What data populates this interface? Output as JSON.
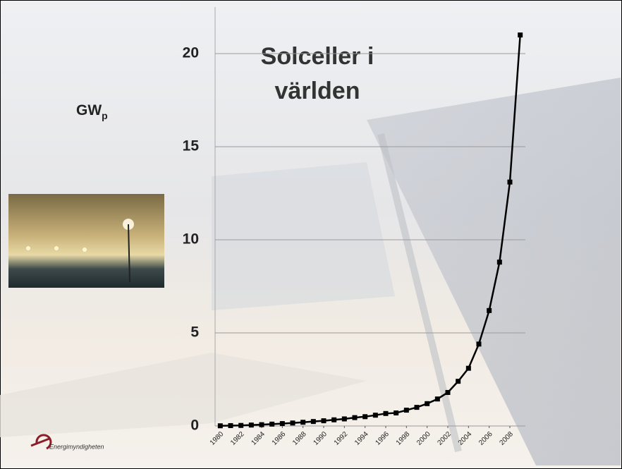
{
  "chart_data": {
    "type": "line",
    "title": "Solceller i världen",
    "y_label": "GW",
    "y_label_sub": "p",
    "logo_text": "Energimyndigheten",
    "x": [
      1980,
      1981,
      1982,
      1983,
      1984,
      1985,
      1986,
      1987,
      1988,
      1989,
      1990,
      1991,
      1992,
      1993,
      1994,
      1995,
      1996,
      1997,
      1998,
      1999,
      2000,
      2001,
      2002,
      2003,
      2004,
      2005,
      2006,
      2007,
      2008,
      2009
    ],
    "series": [
      {
        "color": "#000000",
        "values": [
          0.01,
          0.02,
          0.03,
          0.05,
          0.07,
          0.1,
          0.13,
          0.16,
          0.2,
          0.24,
          0.28,
          0.33,
          0.38,
          0.45,
          0.5,
          0.58,
          0.67,
          0.7,
          0.85,
          1.0,
          1.2,
          1.45,
          1.8,
          2.4,
          3.1,
          4.4,
          6.2,
          8.8,
          13.1,
          21.0
        ]
      }
    ],
    "xlim": [
      1979.5,
      2009.5
    ],
    "xticks": [
      1980,
      1982,
      1984,
      1986,
      1988,
      1990,
      1992,
      1994,
      1996,
      1998,
      2000,
      2002,
      2004,
      2006,
      2008
    ],
    "ylim": [
      0,
      22.5
    ],
    "yticks": [
      0,
      5,
      10,
      15,
      20
    ],
    "grid": true
  }
}
